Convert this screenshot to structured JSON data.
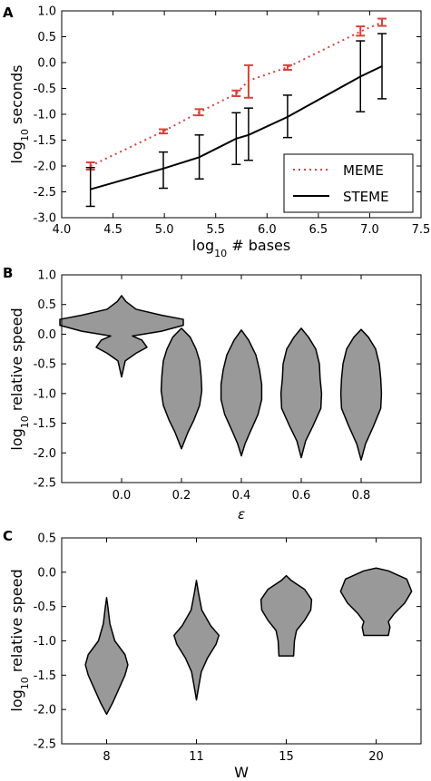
{
  "chart_data": [
    {
      "panel": "A",
      "type": "line",
      "xlabel_base": "log",
      "xlabel_sub": "10",
      "xlabel_rest": " # bases",
      "ylabel_base": "log",
      "ylabel_sub": "10",
      "ylabel_rest": " seconds",
      "xlim": [
        4.0,
        7.5
      ],
      "ylim": [
        -3.0,
        1.0
      ],
      "xticks": [
        "4.0",
        "4.5",
        "5.0",
        "5.5",
        "6.0",
        "6.5",
        "7.0",
        "7.5"
      ],
      "yticks": [
        "1.0",
        "0.5",
        "0.0",
        "-0.5",
        "-1.0",
        "-1.5",
        "-2.0",
        "-2.5",
        "-3.0"
      ],
      "legend_position": "lower-right",
      "series": [
        {
          "name": "MEME",
          "style": "dotted",
          "color": "#d9423a",
          "x": [
            4.28,
            4.99,
            5.34,
            5.7,
            5.82,
            6.2,
            6.91,
            7.12
          ],
          "y": [
            -2.0,
            -1.33,
            -0.96,
            -0.6,
            -0.35,
            -0.09,
            0.6,
            0.78
          ],
          "err_low": [
            -2.07,
            -1.37,
            -1.02,
            -0.65,
            -0.68,
            -0.14,
            0.52,
            0.71
          ],
          "err_high": [
            -1.93,
            -1.29,
            -0.9,
            -0.54,
            -0.05,
            -0.05,
            0.7,
            0.85
          ]
        },
        {
          "name": "STEME",
          "style": "solid",
          "color": "#000000",
          "x": [
            4.28,
            4.99,
            5.34,
            5.7,
            5.82,
            6.2,
            6.91,
            7.12
          ],
          "y": [
            -2.45,
            -2.05,
            -1.83,
            -1.47,
            -1.4,
            -1.05,
            -0.27,
            -0.07
          ],
          "err_low": [
            -2.78,
            -2.43,
            -2.25,
            -1.97,
            -1.89,
            -1.45,
            -0.95,
            -0.7
          ],
          "err_high": [
            -2.03,
            -1.73,
            -1.4,
            -0.97,
            -0.88,
            -0.63,
            0.42,
            0.56
          ]
        }
      ]
    },
    {
      "panel": "B",
      "type": "violin",
      "xlabel": "ε",
      "ylabel_base": "log",
      "ylabel_sub": "10",
      "ylabel_rest": " relative speed",
      "ylim": [
        -2.5,
        1.0
      ],
      "yticks": [
        "1.0",
        "0.5",
        "0.0",
        "-0.5",
        "-1.0",
        "-1.5",
        "-2.0",
        "-2.5"
      ],
      "categories": [
        "0.0",
        "0.2",
        "0.4",
        "0.6",
        "0.8"
      ],
      "fill": "#999999",
      "violins": [
        {
          "profile": [
            [
              0.65,
              0.0
            ],
            [
              0.55,
              0.06
            ],
            [
              0.42,
              0.2
            ],
            [
              0.32,
              0.55
            ],
            [
              0.25,
              0.85
            ],
            [
              0.15,
              0.85
            ],
            [
              0.05,
              0.55
            ],
            [
              -0.03,
              0.15
            ],
            [
              -0.1,
              0.28
            ],
            [
              -0.22,
              0.35
            ],
            [
              -0.32,
              0.2
            ],
            [
              -0.45,
              0.05
            ],
            [
              -0.72,
              0.0
            ]
          ]
        },
        {
          "profile": [
            [
              0.1,
              0.0
            ],
            [
              -0.05,
              0.12
            ],
            [
              -0.25,
              0.2
            ],
            [
              -0.45,
              0.25
            ],
            [
              -0.7,
              0.27
            ],
            [
              -0.95,
              0.28
            ],
            [
              -1.2,
              0.25
            ],
            [
              -1.45,
              0.17
            ],
            [
              -1.65,
              0.09
            ],
            [
              -1.93,
              0.0
            ]
          ]
        },
        {
          "profile": [
            [
              0.07,
              0.0
            ],
            [
              -0.1,
              0.1
            ],
            [
              -0.35,
              0.2
            ],
            [
              -0.6,
              0.25
            ],
            [
              -0.85,
              0.28
            ],
            [
              -1.1,
              0.28
            ],
            [
              -1.35,
              0.23
            ],
            [
              -1.65,
              0.12
            ],
            [
              -1.85,
              0.05
            ],
            [
              -2.05,
              0.0
            ]
          ]
        },
        {
          "profile": [
            [
              0.1,
              0.0
            ],
            [
              -0.05,
              0.1
            ],
            [
              -0.25,
              0.2
            ],
            [
              -0.5,
              0.25
            ],
            [
              -0.75,
              0.26
            ],
            [
              -1.0,
              0.28
            ],
            [
              -1.25,
              0.27
            ],
            [
              -1.55,
              0.16
            ],
            [
              -1.8,
              0.06
            ],
            [
              -2.08,
              0.0
            ]
          ]
        },
        {
          "profile": [
            [
              0.08,
              0.0
            ],
            [
              -0.05,
              0.1
            ],
            [
              -0.25,
              0.2
            ],
            [
              -0.5,
              0.25
            ],
            [
              -0.75,
              0.27
            ],
            [
              -1.0,
              0.28
            ],
            [
              -1.25,
              0.27
            ],
            [
              -1.55,
              0.17
            ],
            [
              -1.85,
              0.06
            ],
            [
              -2.12,
              0.0
            ]
          ]
        }
      ]
    },
    {
      "panel": "C",
      "type": "violin",
      "xlabel": "W",
      "ylabel_base": "log",
      "ylabel_sub": "10",
      "ylabel_rest": " relative speed",
      "ylim": [
        -2.5,
        0.5
      ],
      "yticks": [
        "0.5",
        "0.0",
        "-0.5",
        "-1.0",
        "-1.5",
        "-2.0",
        "-2.5"
      ],
      "categories": [
        "8",
        "11",
        "15",
        "20"
      ],
      "fill": "#999999",
      "violins": [
        {
          "profile": [
            [
              -0.37,
              0.0
            ],
            [
              -0.5,
              0.03
            ],
            [
              -0.75,
              0.08
            ],
            [
              -1.0,
              0.2
            ],
            [
              -1.2,
              0.45
            ],
            [
              -1.35,
              0.52
            ],
            [
              -1.5,
              0.45
            ],
            [
              -1.7,
              0.3
            ],
            [
              -1.9,
              0.15
            ],
            [
              -2.07,
              0.0
            ]
          ]
        },
        {
          "profile": [
            [
              -0.12,
              0.0
            ],
            [
              -0.3,
              0.05
            ],
            [
              -0.55,
              0.13
            ],
            [
              -0.78,
              0.35
            ],
            [
              -0.92,
              0.55
            ],
            [
              -1.05,
              0.48
            ],
            [
              -1.25,
              0.27
            ],
            [
              -1.45,
              0.12
            ],
            [
              -1.65,
              0.06
            ],
            [
              -1.86,
              0.0
            ]
          ]
        },
        {
          "profile": [
            [
              -0.05,
              0.0
            ],
            [
              -0.12,
              0.12
            ],
            [
              -0.25,
              0.45
            ],
            [
              -0.4,
              0.62
            ],
            [
              -0.55,
              0.6
            ],
            [
              -0.7,
              0.45
            ],
            [
              -0.85,
              0.25
            ],
            [
              -1.0,
              0.2
            ],
            [
              -1.22,
              0.18
            ]
          ]
        },
        {
          "profile": [
            [
              0.06,
              0.0
            ],
            [
              0.02,
              0.3
            ],
            [
              -0.1,
              0.75
            ],
            [
              -0.28,
              0.87
            ],
            [
              -0.45,
              0.7
            ],
            [
              -0.6,
              0.45
            ],
            [
              -0.72,
              0.3
            ],
            [
              -0.8,
              0.34
            ],
            [
              -0.92,
              0.3
            ]
          ]
        }
      ]
    }
  ],
  "panel_labels": [
    "A",
    "B",
    "C"
  ]
}
